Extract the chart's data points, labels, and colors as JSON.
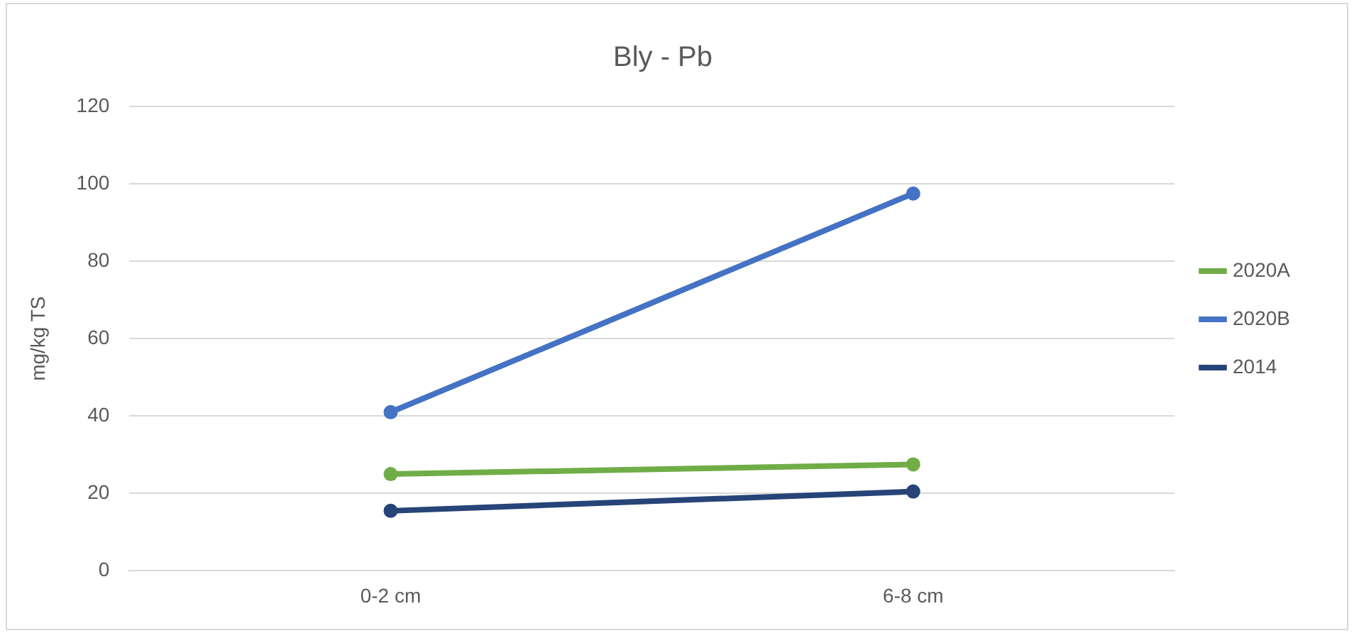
{
  "chart_data": {
    "type": "line",
    "title": "Bly - Pb",
    "ylabel": "mg/kg TS",
    "categories": [
      "0-2 cm",
      "6-8 cm"
    ],
    "series": [
      {
        "name": "2020A",
        "color": "#70ad47",
        "values": [
          25,
          27.5
        ]
      },
      {
        "name": "2020B",
        "color": "#4472c4",
        "values": [
          41,
          97.5
        ]
      },
      {
        "name": "2014",
        "color": "#264478",
        "values": [
          15.5,
          20.5
        ]
      }
    ],
    "ylim": [
      0,
      120
    ],
    "yticks": [
      0,
      20,
      40,
      60,
      80,
      100,
      120
    ],
    "grid": "y",
    "legend": "right",
    "marker": "circle",
    "line_style": "solid"
  }
}
